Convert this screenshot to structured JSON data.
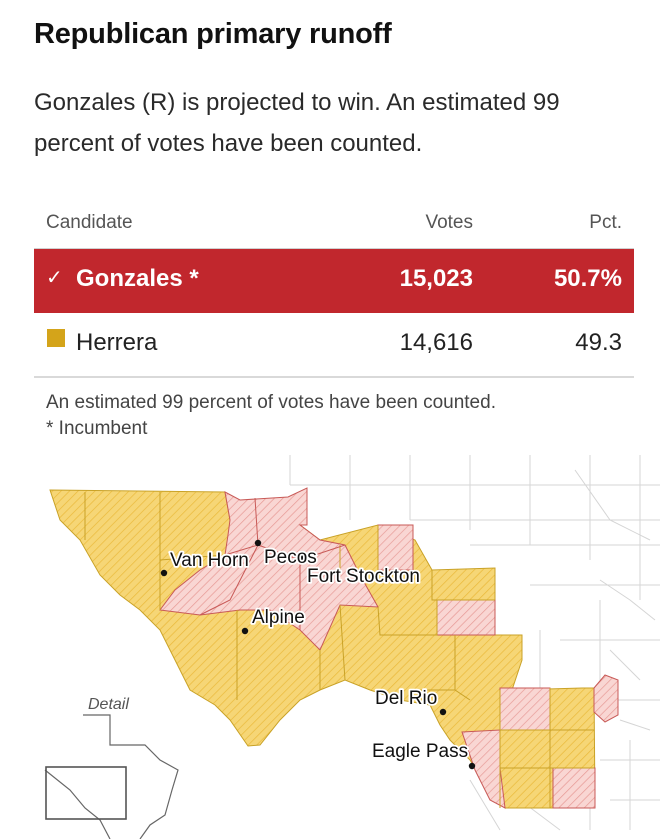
{
  "title": "Republican primary runoff",
  "subtitle": "Gonzales (R) is projected to win. An estimated 99 percent of votes have been counted.",
  "table": {
    "headers": {
      "candidate": "Candidate",
      "votes": "Votes",
      "pct": "Pct."
    },
    "rows": [
      {
        "name": "Gonzales *",
        "votes": "15,023",
        "pct": "50.7%",
        "winner": true,
        "color": "#c1272d"
      },
      {
        "name": "Herrera",
        "votes": "14,616",
        "pct": "49.3",
        "winner": false,
        "color": "#d4a41a"
      }
    ]
  },
  "notes": {
    "counted": "An estimated 99 percent of votes have been counted.",
    "incumbent": "* Incumbent"
  },
  "map": {
    "colors": {
      "gonzales": "#f6c7c4",
      "herrera": "#f3cf6b",
      "border_gonzales": "#c85a57",
      "border_herrera": "#c9a227"
    },
    "cities": [
      "Van Horn",
      "Pecos",
      "Fort Stockton",
      "Alpine",
      "Del Rio",
      "Eagle Pass"
    ],
    "detail_label": "Detail"
  },
  "icons": {
    "check": "check-icon",
    "swatch": "legend-swatch"
  }
}
